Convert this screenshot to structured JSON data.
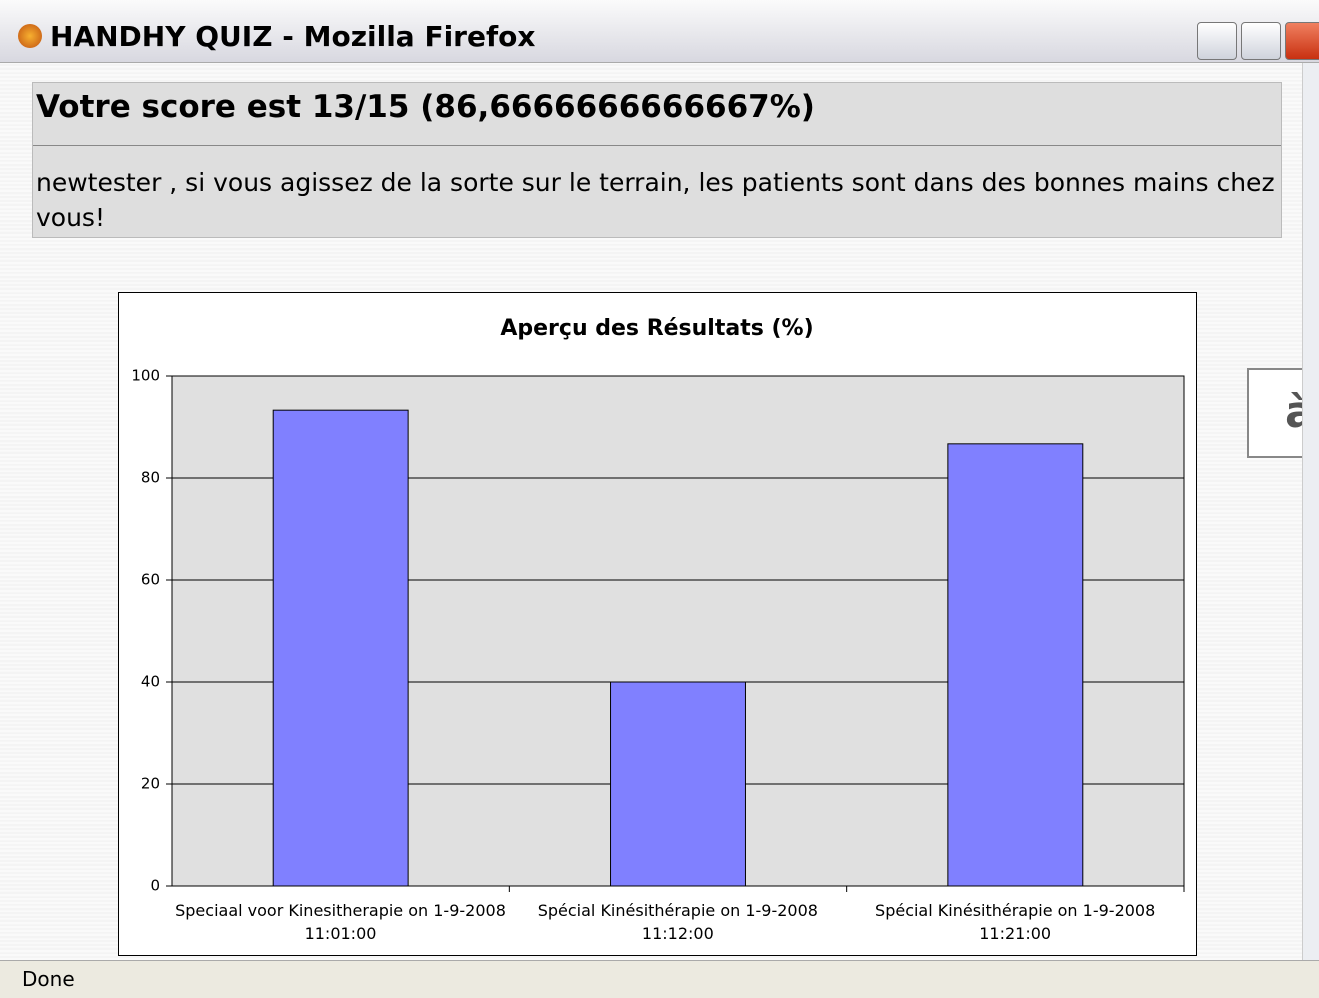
{
  "window": {
    "title": "HANDHY QUIZ - Mozilla Firefox"
  },
  "score": {
    "heading": "Votre score est 13/15 (86,6666666666667%)",
    "message": "newtester , si vous agissez de la sorte sur le terrain, les patients sont dans des bonnes mains chez vous!"
  },
  "side_box": "à",
  "status": "Done",
  "chart_data": {
    "type": "bar",
    "title": "Aperçu des Résultats (%)",
    "categories": [
      "Speciaal voor Kinesitherapie on 1-9-2008\n11:01:00",
      "Spécial Kinésithérapie on 1-9-2008\n11:12:00",
      "Spécial Kinésithérapie on 1-9-2008\n11:21:00"
    ],
    "values": [
      93.3,
      40,
      86.7
    ],
    "color": "#8080ff",
    "ylim": [
      0,
      100
    ],
    "yticks": [
      0,
      20,
      40,
      60,
      80,
      100
    ],
    "grid": true
  }
}
